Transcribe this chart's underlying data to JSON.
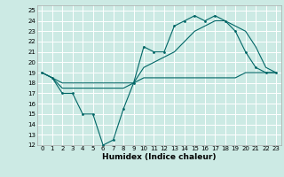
{
  "xlabel": "Humidex (Indice chaleur)",
  "background_color": "#cceae4",
  "grid_color": "#ffffff",
  "line_color": "#006666",
  "xlim": [
    -0.5,
    23.5
  ],
  "ylim": [
    12,
    25.5
  ],
  "xticks": [
    0,
    1,
    2,
    3,
    4,
    5,
    6,
    7,
    8,
    9,
    10,
    11,
    12,
    13,
    14,
    15,
    16,
    17,
    18,
    19,
    20,
    21,
    22,
    23
  ],
  "yticks": [
    12,
    13,
    14,
    15,
    16,
    17,
    18,
    19,
    20,
    21,
    22,
    23,
    24,
    25
  ],
  "line1_x": [
    0,
    1,
    2,
    3,
    4,
    5,
    6,
    7,
    8,
    9,
    10,
    11,
    12,
    13,
    14,
    15,
    16,
    17,
    18,
    19,
    20,
    21,
    22,
    23
  ],
  "line1_y": [
    19,
    18.5,
    17,
    17,
    15,
    15,
    12,
    12.5,
    15.5,
    18,
    21.5,
    21,
    21,
    23.5,
    24,
    24.5,
    24,
    24.5,
    24,
    23,
    21,
    19.5,
    19,
    19
  ],
  "line2_x": [
    0,
    1,
    2,
    3,
    4,
    5,
    6,
    7,
    8,
    9,
    10,
    11,
    12,
    13,
    14,
    15,
    16,
    17,
    18,
    19,
    20,
    21,
    22,
    23
  ],
  "line2_y": [
    19,
    18.5,
    18,
    18,
    18,
    18,
    18,
    18,
    18,
    18,
    18.5,
    18.5,
    18.5,
    18.5,
    18.5,
    18.5,
    18.5,
    18.5,
    18.5,
    18.5,
    19,
    19,
    19,
    19
  ],
  "line3_x": [
    0,
    1,
    2,
    3,
    4,
    5,
    6,
    7,
    8,
    9,
    10,
    11,
    12,
    13,
    14,
    15,
    16,
    17,
    18,
    19,
    20,
    21,
    22,
    23
  ],
  "line3_y": [
    19,
    18.5,
    17.5,
    17.5,
    17.5,
    17.5,
    17.5,
    17.5,
    17.5,
    18,
    19.5,
    20,
    20.5,
    21,
    22,
    23,
    23.5,
    24,
    24,
    23.5,
    23,
    21.5,
    19.5,
    19
  ],
  "xlabel_fontsize": 6.5,
  "tick_fontsize": 5.0
}
